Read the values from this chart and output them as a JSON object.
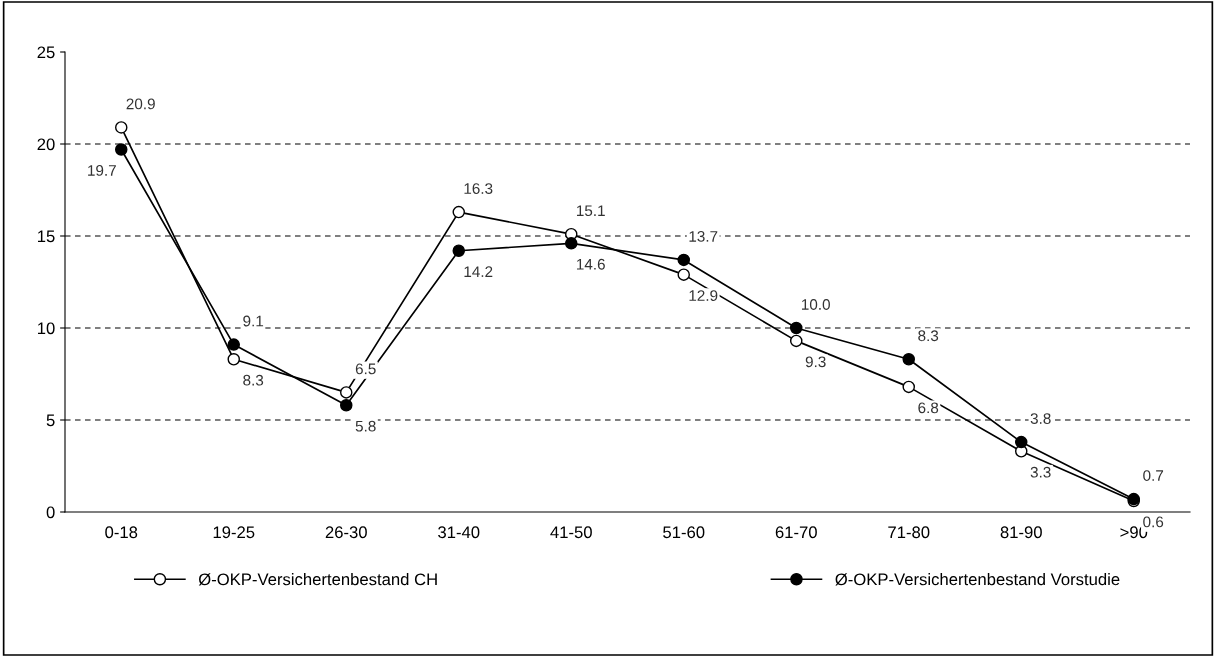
{
  "chart_data": {
    "type": "line",
    "categories": [
      "0-18",
      "19-25",
      "26-30",
      "31-40",
      "41-50",
      "51-60",
      "61-70",
      "71-80",
      "81-90",
      ">90"
    ],
    "series": [
      {
        "name": "Ø-OKP-Versichertenbestand CH",
        "color": "#000000",
        "values": [
          20.9,
          8.3,
          6.5,
          16.3,
          15.1,
          12.9,
          9.3,
          6.8,
          3.3,
          0.6
        ],
        "value_labels": [
          "20.9",
          "8.3",
          "6.5",
          "16.3",
          "15.1",
          "12.9",
          "9.3",
          "6.8",
          "3.3",
          "0.6"
        ]
      },
      {
        "name": "Ø-OKP-Versichertenbestand Vorstudie",
        "color": "#000000",
        "values": [
          19.7,
          9.1,
          5.8,
          14.2,
          14.6,
          13.7,
          10.0,
          8.3,
          3.8,
          0.7
        ],
        "value_labels": [
          "19.7",
          "9.1",
          "5.8",
          "14.2",
          "14.6",
          "13.7",
          "10.0",
          "8.3",
          "3.8",
          "0.7"
        ]
      }
    ],
    "ylim": [
      0,
      25
    ],
    "yticks": [
      0,
      5,
      10,
      15,
      20,
      25
    ],
    "grid": "y",
    "legend": "bottom",
    "marker": "circle",
    "line_style": "solid"
  }
}
